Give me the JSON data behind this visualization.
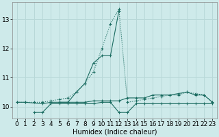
{
  "xlabel": "Humidex (Indice chaleur)",
  "xlim": [
    -0.5,
    23.5
  ],
  "ylim": [
    9.6,
    13.6
  ],
  "background_color": "#ceeaea",
  "grid_color": "#b8d8d8",
  "line_color": "#1a6b60",
  "series": [
    {
      "x": [
        0,
        1,
        2,
        3,
        4,
        5,
        6,
        7,
        8,
        9,
        10,
        11,
        12,
        13,
        14,
        15,
        16,
        17,
        18,
        19,
        20,
        21,
        22,
        23
      ],
      "y": [
        10.15,
        10.15,
        10.15,
        10.15,
        10.2,
        10.25,
        10.3,
        10.5,
        10.8,
        11.2,
        12.0,
        12.85,
        13.35,
        10.15,
        10.2,
        10.25,
        10.3,
        10.35,
        10.4,
        10.4,
        10.5,
        10.45,
        10.4,
        10.15
      ],
      "style": ":",
      "marker": "+"
    },
    {
      "x": [
        5,
        6,
        7,
        8,
        9,
        10,
        11,
        12
      ],
      "y": [
        10.15,
        10.15,
        10.5,
        10.8,
        11.5,
        11.75,
        11.75,
        13.3
      ],
      "style": "-",
      "marker": "+"
    },
    {
      "x": [
        0,
        1,
        3,
        4,
        5,
        6,
        7,
        8,
        9,
        10,
        11,
        12,
        13,
        14,
        15,
        16,
        17,
        18,
        19,
        20,
        21,
        22,
        23
      ],
      "y": [
        10.15,
        10.15,
        10.1,
        10.15,
        10.15,
        10.15,
        10.15,
        10.15,
        10.2,
        10.2,
        10.2,
        10.2,
        10.3,
        10.3,
        10.3,
        10.4,
        10.4,
        10.4,
        10.45,
        10.5,
        10.4,
        10.4,
        10.15
      ],
      "style": "-",
      "marker": "+"
    },
    {
      "x": [
        2,
        3,
        4,
        5,
        6,
        7,
        8,
        9,
        10,
        11,
        12,
        13,
        14,
        15,
        16,
        17,
        18,
        19,
        20,
        21,
        22,
        23
      ],
      "y": [
        9.8,
        9.8,
        10.1,
        10.1,
        10.1,
        10.1,
        10.1,
        10.1,
        10.15,
        10.15,
        9.8,
        9.8,
        10.1,
        10.1,
        10.1,
        10.1,
        10.1,
        10.1,
        10.1,
        10.1,
        10.1,
        10.1
      ],
      "style": "-",
      "marker": "+"
    }
  ],
  "yticks": [
    10,
    11,
    12,
    13
  ],
  "xticks": [
    0,
    1,
    2,
    3,
    4,
    5,
    6,
    7,
    8,
    9,
    10,
    11,
    12,
    13,
    14,
    15,
    16,
    17,
    18,
    19,
    20,
    21,
    22,
    23
  ],
  "tick_fontsize": 6.5,
  "xlabel_fontsize": 7
}
